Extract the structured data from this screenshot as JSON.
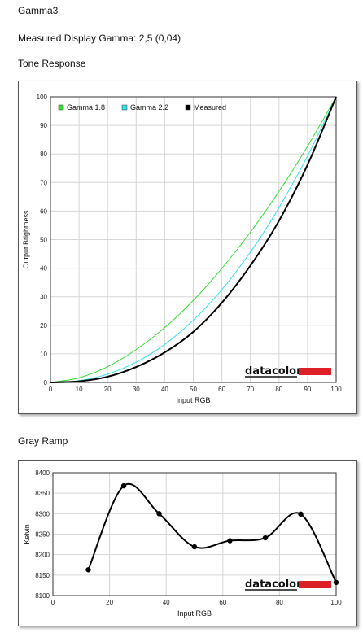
{
  "header": {
    "title": "Gamma3",
    "measured_gamma": "Measured Display Gamma: 2,5 (0,04)"
  },
  "tone_section_title": "Tone Response",
  "ramp_section_title": "Gray Ramp",
  "brand": "datacolor",
  "colors": {
    "gamma18": "#33dd33",
    "gamma22": "#33e0f0",
    "measured": "#000000",
    "brand_red": "#dd1f26"
  },
  "chart_data": [
    {
      "type": "line",
      "title": "",
      "xlabel": "Input RGB",
      "ylabel": "Output Brightness",
      "xlim": [
        0,
        100
      ],
      "ylim": [
        0,
        100
      ],
      "xticks": [
        0,
        10,
        20,
        30,
        40,
        50,
        60,
        70,
        80,
        90,
        100
      ],
      "yticks": [
        0,
        10,
        20,
        30,
        40,
        50,
        60,
        70,
        80,
        90,
        100
      ],
      "grid": true,
      "legend": "top-left",
      "x": [
        0,
        10,
        20,
        30,
        40,
        50,
        60,
        70,
        80,
        90,
        100
      ],
      "series": [
        {
          "name": "Gamma 1.8",
          "values": [
            0,
            1.6,
            5.5,
            11.5,
            19.2,
            28.7,
            39.9,
            52.6,
            66.9,
            82.7,
            100
          ]
        },
        {
          "name": "Gamma 2.2",
          "values": [
            0,
            0.6,
            2.9,
            7.1,
            13.3,
            21.8,
            32.5,
            45.6,
            61.2,
            79.3,
            100
          ]
        },
        {
          "name": "Measured",
          "values": [
            0,
            0.4,
            2.0,
            5.4,
            10.5,
            17.7,
            27.9,
            40.9,
            56.6,
            76.2,
            100
          ]
        }
      ]
    },
    {
      "type": "line",
      "title": "",
      "xlabel": "Input RGB",
      "ylabel": "Kelvin",
      "xlim": [
        0,
        100
      ],
      "ylim": [
        8100,
        8400
      ],
      "xticks": [
        0,
        20,
        40,
        60,
        80,
        100
      ],
      "yticks": [
        8100,
        8150,
        8200,
        8250,
        8300,
        8350,
        8400
      ],
      "grid": true,
      "x": [
        12.5,
        25,
        37.5,
        50,
        62.5,
        75,
        87.5,
        100
      ],
      "series": [
        {
          "name": "",
          "values": [
            8163,
            8368,
            8300,
            8219,
            8234,
            8241,
            8299,
            8132
          ]
        }
      ]
    }
  ]
}
